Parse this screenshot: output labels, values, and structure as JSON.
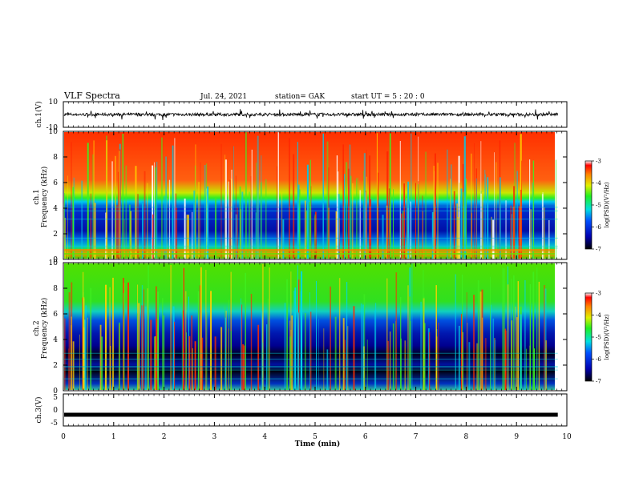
{
  "header": {
    "title": "VLF Spectra",
    "date": "Jul. 24, 2021",
    "station": "station= GAK",
    "start_ut": "start UT =  5 : 20 : 0"
  },
  "panels": {
    "ch1_wave": {
      "ylabel": "ch.1(V)",
      "ticks": [
        "10",
        "-10"
      ]
    },
    "ch1_spec": {
      "ylabel_line1": "ch.1",
      "ylabel_line2": "Frequency (kHz)",
      "ticks": [
        "10",
        "8",
        "6",
        "4",
        "2",
        "0"
      ]
    },
    "ch2_spec": {
      "ylabel_line1": "ch.2",
      "ylabel_line2": "Frequency (kHz)",
      "ticks": [
        "10",
        "8",
        "6",
        "4",
        "2",
        "0"
      ]
    },
    "ch3_wave": {
      "ylabel": "ch.3(V)",
      "ticks": [
        "5",
        "0",
        "-5"
      ]
    }
  },
  "xaxis": {
    "label": "Time (min)",
    "ticks": [
      "0",
      "1",
      "2",
      "3",
      "4",
      "5",
      "6",
      "7",
      "8",
      "9",
      "10"
    ]
  },
  "colorbar": {
    "label": "log(PSD)(V²/Hz)",
    "ticks": [
      "-3",
      "-4",
      "-5",
      "-6",
      "-7"
    ]
  },
  "colors": {
    "high": "#ff2a00",
    "mid": "#22ee00",
    "cyan": "#00d8e8",
    "low": "#0010c0",
    "floor": "#000010"
  },
  "chart_data": [
    {
      "type": "line",
      "name": "ch.1 waveform",
      "ylabel": "ch.1(V)",
      "xlim": [
        0,
        10
      ],
      "ylim": [
        -10,
        10
      ],
      "xlabel": "Time (min)",
      "y_mean": 0,
      "y_range_observed": [
        -4,
        4
      ],
      "data_end_min": 9.82
    },
    {
      "type": "heatmap",
      "ylabel": "ch.1 Frequency (kHz)",
      "xlim": [
        0,
        10
      ],
      "ylim": [
        0,
        10
      ],
      "colorbar_range": [
        -7,
        -3
      ],
      "colorbar_label": "log(PSD)(V²/Hz)",
      "bands": [
        {
          "freq_kHz": [
            0,
            0.8
          ],
          "level": -4
        },
        {
          "freq_kHz": [
            0.8,
            4.5
          ],
          "level": -6.5
        },
        {
          "freq_kHz": [
            4.5,
            6
          ],
          "level": -5
        },
        {
          "freq_kHz": [
            6,
            10
          ],
          "level": -3.5
        }
      ],
      "data_end_min": 9.82
    },
    {
      "type": "heatmap",
      "ylabel": "ch.2 Frequency (kHz)",
      "xlim": [
        0,
        10
      ],
      "ylim": [
        0,
        10
      ],
      "colorbar_range": [
        -7,
        -3
      ],
      "colorbar_label": "log(PSD)(V²/Hz)",
      "bands": [
        {
          "freq_kHz": [
            0,
            0.5
          ],
          "level": -5
        },
        {
          "freq_kHz": [
            0.5,
            3.5
          ],
          "level": -7
        },
        {
          "freq_kHz": [
            3.5,
            6
          ],
          "level": -6
        },
        {
          "freq_kHz": [
            6,
            10
          ],
          "level": -4.5
        }
      ],
      "data_end_min": 9.82
    },
    {
      "type": "line",
      "name": "ch.3 waveform",
      "ylabel": "ch.3(V)",
      "xlim": [
        0,
        10
      ],
      "ylim": [
        -5,
        5
      ],
      "y_constant": -1.5,
      "data_end_min": 9.82
    }
  ]
}
